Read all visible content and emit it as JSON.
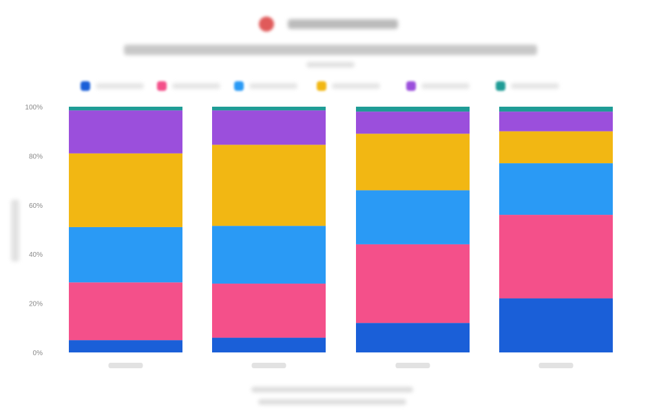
{
  "chart_data": {
    "type": "bar",
    "stacked": true,
    "normalized": true,
    "title": "",
    "subtitle": "",
    "xlabel": "",
    "ylabel": "",
    "ylim": [
      0,
      100
    ],
    "y_ticks": [
      "0%",
      "20%",
      "40%",
      "60%",
      "80%",
      "100%"
    ],
    "grid": false,
    "legend_position": "top",
    "categories": [
      "",
      "",
      "",
      ""
    ],
    "series": [
      {
        "color": "#1a5fd8",
        "values": [
          5,
          6,
          12,
          22
        ]
      },
      {
        "color": "#f4508a",
        "values": [
          23.5,
          22,
          32,
          34
        ]
      },
      {
        "color": "#2a9af5",
        "values": [
          22.5,
          23.5,
          22,
          21
        ]
      },
      {
        "color": "#f2b713",
        "values": [
          30,
          33,
          23,
          13
        ]
      },
      {
        "color": "#9b4fdc",
        "values": [
          17.5,
          14,
          9,
          8
        ]
      },
      {
        "color": "#1f9c96",
        "values": [
          1.5,
          1.5,
          2,
          2
        ]
      }
    ]
  }
}
